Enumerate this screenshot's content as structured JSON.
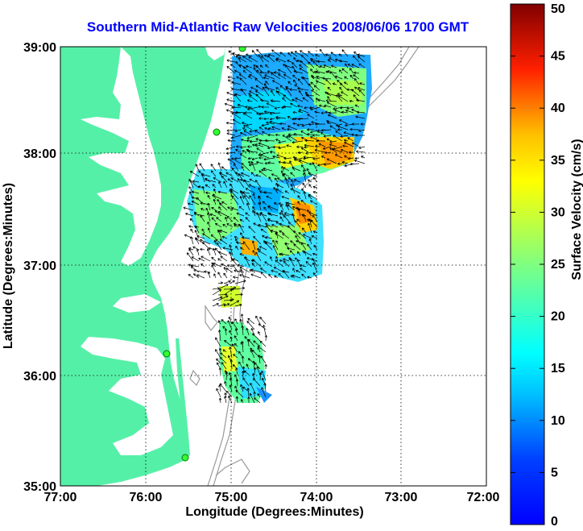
{
  "title": "Southern Mid-Atlantic Raw Velocities 2008/06/06 1700 GMT",
  "map": {
    "x_axis_label": "Longitude (Degrees:Minutes)",
    "y_axis_label": "Latitude (Degrees:Minutes)",
    "x_ticks": [
      "77:00",
      "76:00",
      "75:00",
      "74:00",
      "73:00",
      "72:00"
    ],
    "y_ticks": [
      "39:00",
      "38:00",
      "37:00",
      "36:00",
      "35:00"
    ],
    "land_color": "#55f0a8",
    "water_color": "#ffffff",
    "grid": true
  },
  "colorbar": {
    "label": "Surface Velocity (cm/s)",
    "ticks": [
      "50",
      "45",
      "40",
      "35",
      "30",
      "25",
      "20",
      "15",
      "10",
      "5",
      "0"
    ],
    "min": 0,
    "max": 50,
    "colormap": "jet"
  }
}
